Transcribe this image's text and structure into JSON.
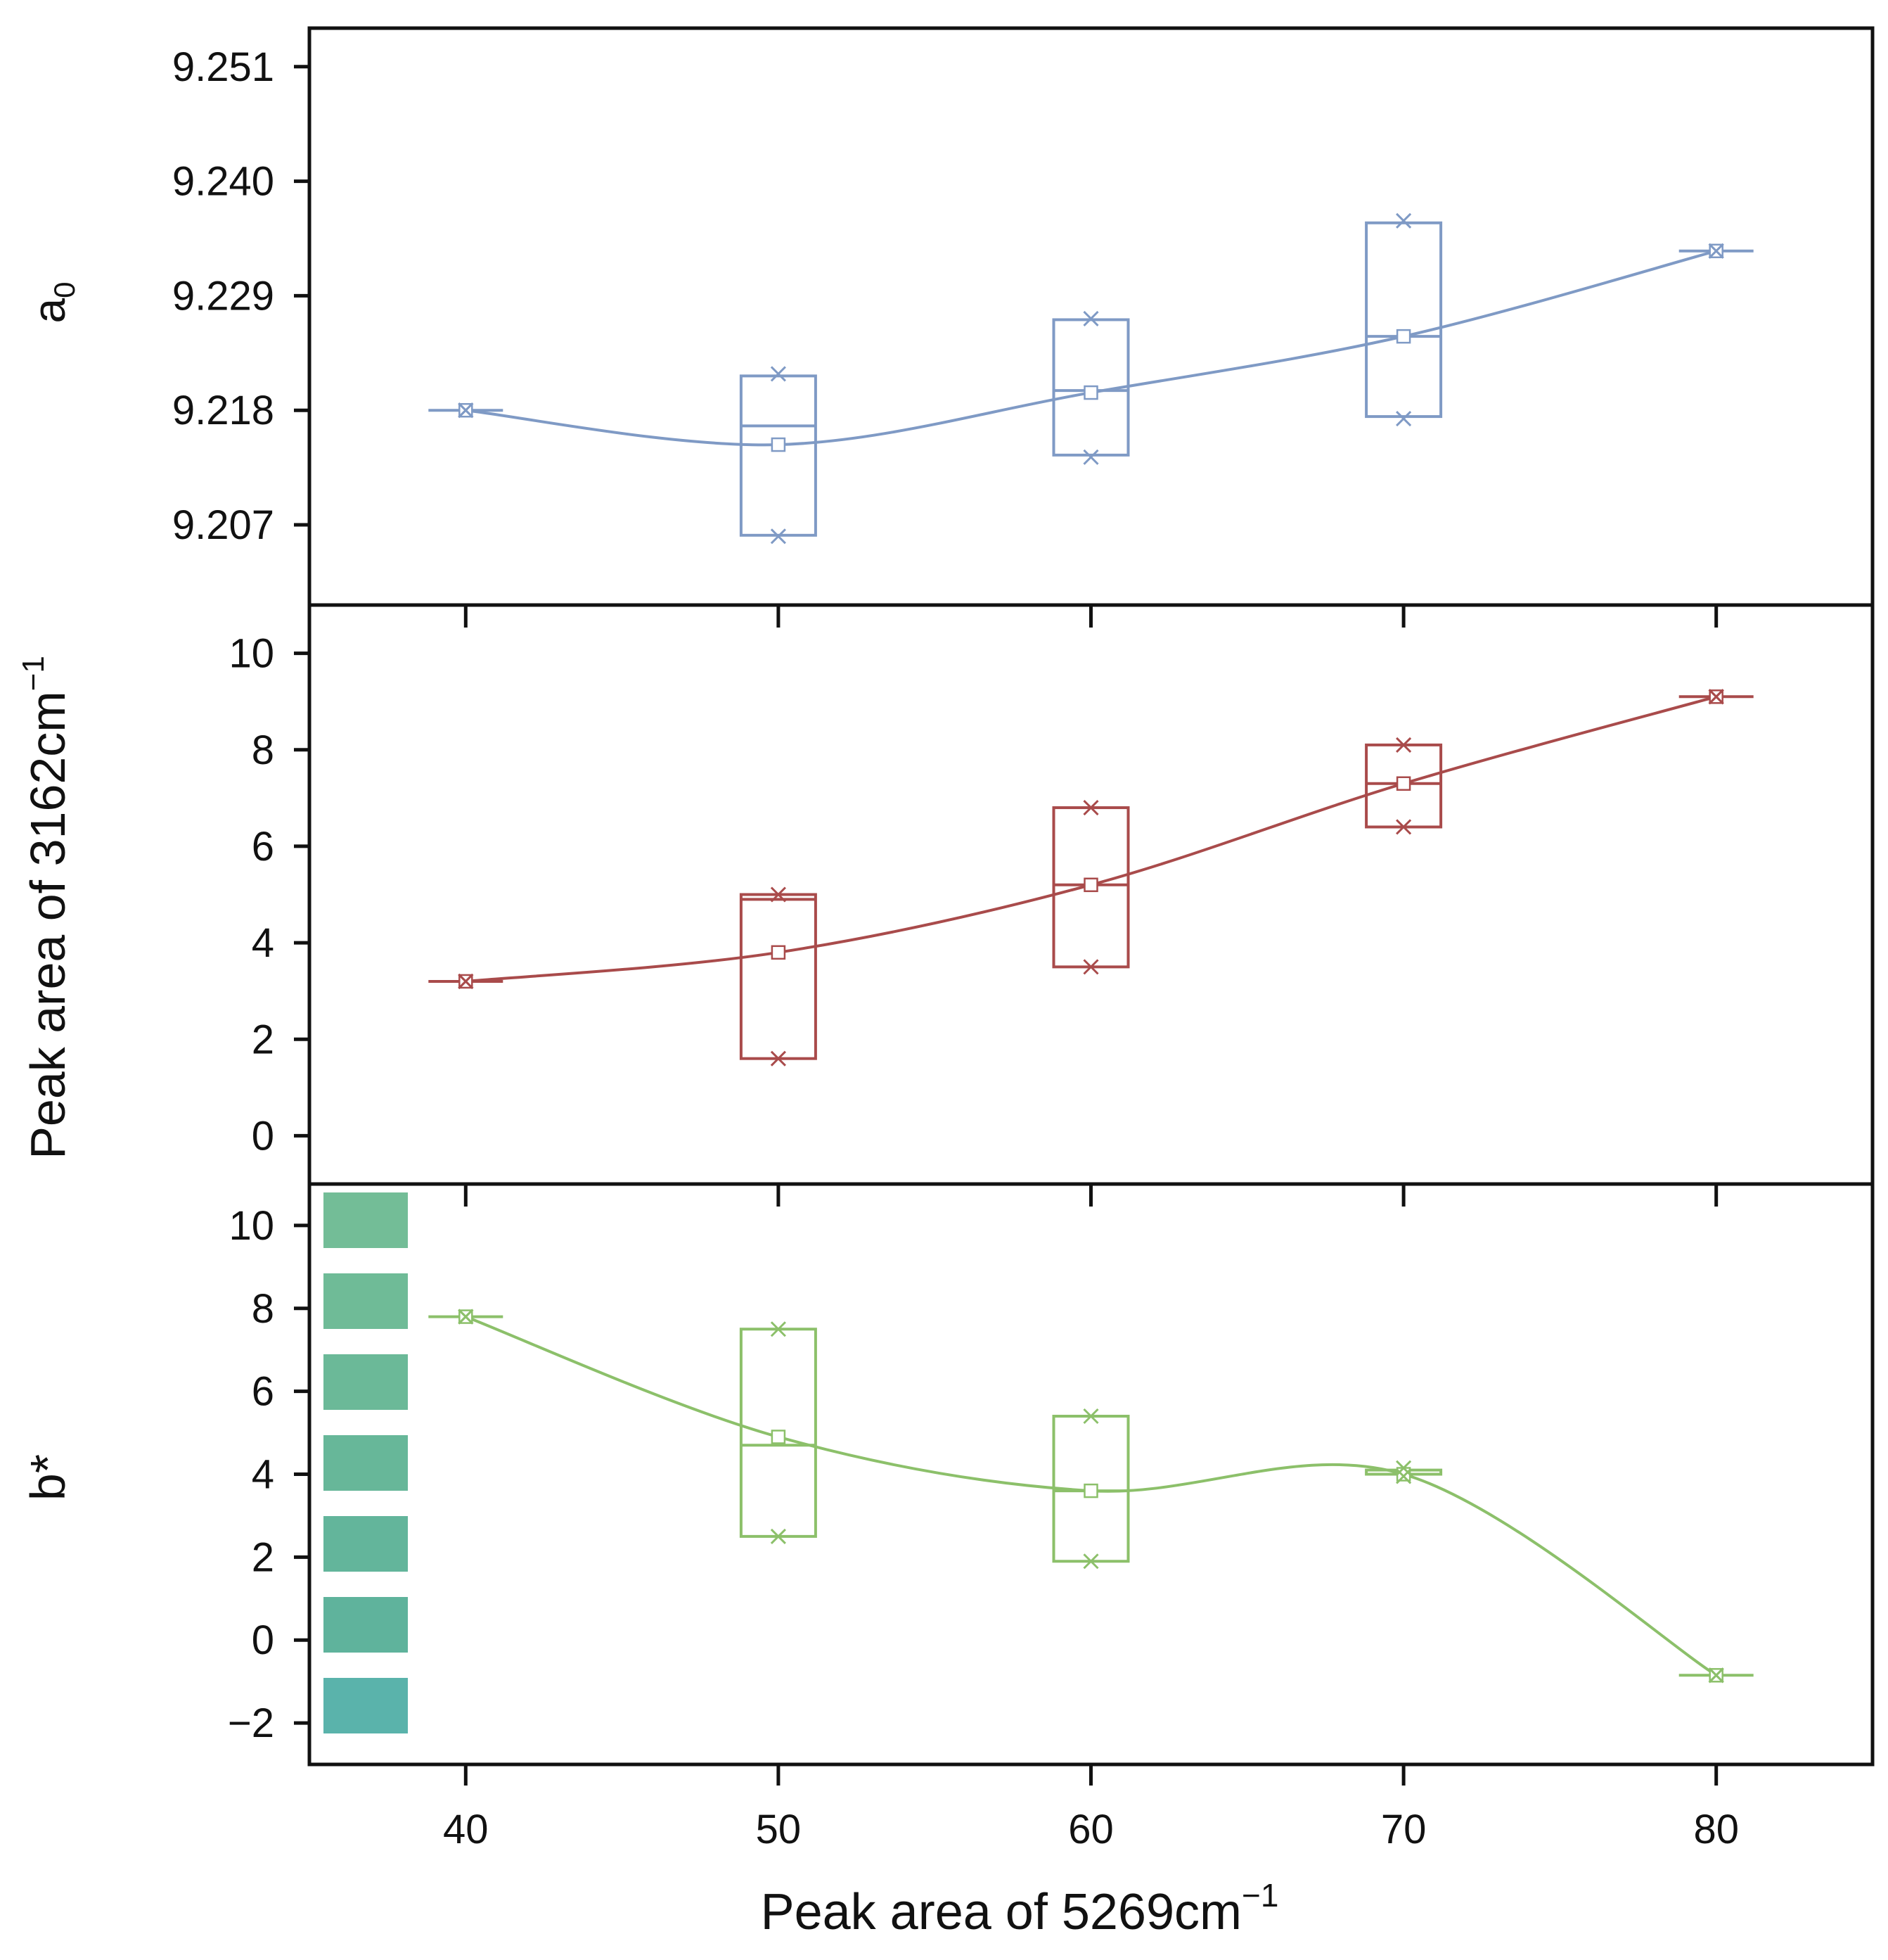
{
  "chart_data": {
    "type": "box-line",
    "xlabel": "Peak area of 5269cm",
    "xlabel_sup": "−1",
    "x_ticks": [
      40,
      50,
      60,
      70,
      80
    ],
    "x_tick_labels": [
      "40",
      "50",
      "60",
      "70",
      "80"
    ],
    "xlim": [
      35,
      85
    ],
    "panels": [
      {
        "id": "a0",
        "ylabel": "a",
        "ylabel_sub": "0",
        "color": "#7f9ac5",
        "ylim": [
          9.1993,
          9.2547
        ],
        "y_ticks": [
          9.207,
          9.218,
          9.229,
          9.24,
          9.251
        ],
        "y_tick_labels": [
          "9.207",
          "9.218",
          "9.229",
          "9.240",
          "9.251"
        ],
        "boxes": [
          {
            "x": 40,
            "low": 9.218,
            "high": 9.218,
            "median": 9.218,
            "mean": 9.218,
            "min": 9.218,
            "max": 9.218
          },
          {
            "x": 50,
            "low": 9.206,
            "high": 9.2213,
            "median": 9.2165,
            "mean": 9.2147,
            "min": 9.2059,
            "max": 9.2215
          },
          {
            "x": 60,
            "low": 9.2137,
            "high": 9.2267,
            "median": 9.2199,
            "mean": 9.2197,
            "min": 9.2135,
            "max": 9.2268
          },
          {
            "x": 70,
            "low": 9.2174,
            "high": 9.236,
            "median": 9.2251,
            "mean": 9.2251,
            "min": 9.2172,
            "max": 9.2362
          },
          {
            "x": 80,
            "low": 9.2333,
            "high": 9.2333,
            "median": 9.2333,
            "mean": 9.2333,
            "min": 9.2333,
            "max": 9.2333
          }
        ]
      },
      {
        "id": "peak3162",
        "ylabel": "Peak area of 3162cm",
        "ylabel_sup": "−1",
        "color": "#a94b4b",
        "ylim": [
          -1.0,
          11.0
        ],
        "y_ticks": [
          0,
          2,
          4,
          6,
          8,
          10
        ],
        "y_tick_labels": [
          "0",
          "2",
          "4",
          "6",
          "8",
          "10"
        ],
        "boxes": [
          {
            "x": 40,
            "low": 3.2,
            "high": 3.2,
            "median": 3.2,
            "mean": 3.2,
            "min": 3.2,
            "max": 3.2
          },
          {
            "x": 50,
            "low": 1.6,
            "high": 5.0,
            "median": 4.9,
            "mean": 3.8,
            "min": 1.6,
            "max": 5.0
          },
          {
            "x": 60,
            "low": 3.5,
            "high": 6.8,
            "median": 5.2,
            "mean": 5.2,
            "min": 3.5,
            "max": 6.8
          },
          {
            "x": 70,
            "low": 6.4,
            "high": 8.1,
            "median": 7.3,
            "mean": 7.3,
            "min": 6.4,
            "max": 8.1
          },
          {
            "x": 80,
            "low": 9.1,
            "high": 9.1,
            "median": 9.1,
            "mean": 9.1,
            "min": 9.1,
            "max": 9.1
          }
        ]
      },
      {
        "id": "bstar",
        "ylabel": "b*",
        "color": "#8cc06a",
        "ylim": [
          -3.0,
          11.0
        ],
        "y_ticks": [
          -2,
          0,
          2,
          4,
          6,
          8,
          10
        ],
        "y_tick_labels": [
          "−2",
          "0",
          "2",
          "4",
          "6",
          "8",
          "10"
        ],
        "boxes": [
          {
            "x": 40,
            "low": 7.8,
            "high": 7.8,
            "median": 7.8,
            "mean": 7.8,
            "min": 7.8,
            "max": 7.8
          },
          {
            "x": 50,
            "low": 2.5,
            "high": 7.5,
            "median": 4.7,
            "mean": 4.9,
            "min": 2.5,
            "max": 7.5
          },
          {
            "x": 60,
            "low": 1.9,
            "high": 5.4,
            "median": 3.6,
            "mean": 3.6,
            "min": 1.9,
            "max": 5.4
          },
          {
            "x": 70,
            "low": 4.0,
            "high": 4.1,
            "median": 4.0,
            "mean": 4.0,
            "min": 3.95,
            "max": 4.15
          },
          {
            "x": 80,
            "low": -0.85,
            "high": -0.85,
            "median": -0.85,
            "mean": -0.85,
            "min": -0.85,
            "max": -0.85
          }
        ],
        "color_swatches": [
          "#73bd97",
          "#6fbb97",
          "#6bb998",
          "#67b799",
          "#63b59b",
          "#5fb39c",
          "#5ab3ab"
        ]
      }
    ]
  }
}
